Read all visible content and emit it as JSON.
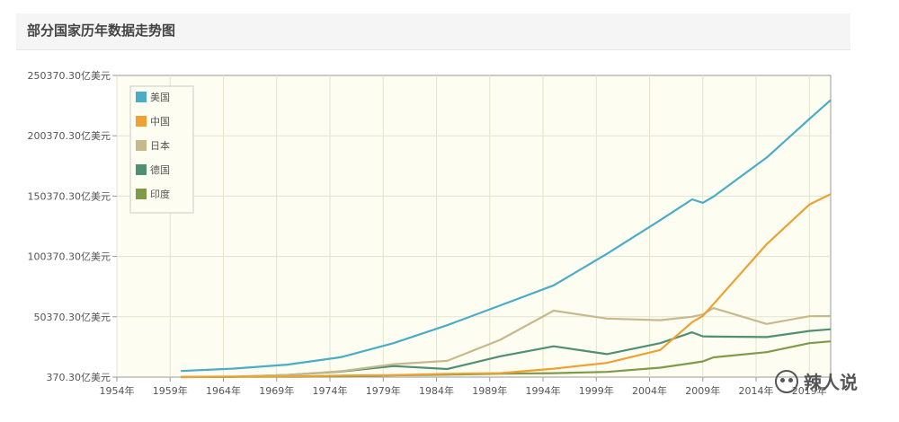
{
  "header": {
    "title": "部分国家历年数据走势图"
  },
  "watermark": {
    "text": "辣人说",
    "icon": "wechat-icon"
  },
  "chart_data": {
    "type": "line",
    "title": "部分国家历年数据走势图",
    "xlabel": "",
    "ylabel": "",
    "x_tick_labels": [
      "1954年",
      "1959年",
      "1964年",
      "1969年",
      "1974年",
      "1979年",
      "1984年",
      "1989年",
      "1994年",
      "1999年",
      "2004年",
      "2009年",
      "2014年",
      "2019年"
    ],
    "y_tick_labels": [
      "370.30亿美元",
      "50370.30亿美元",
      "100370.30亿美元",
      "150370.30亿美元",
      "200370.30亿美元",
      "250370.30亿美元"
    ],
    "xlim": [
      1954,
      2021
    ],
    "ylim": [
      370.3,
      250370.3
    ],
    "grid": true,
    "legend_position": "top-left",
    "x": [
      1960,
      1965,
      1970,
      1975,
      1980,
      1985,
      1990,
      1995,
      2000,
      2005,
      2008,
      2009,
      2010,
      2015,
      2019,
      2021
    ],
    "series": [
      {
        "name": "美国",
        "color": "#4bacc6",
        "values": [
          5433,
          7437,
          10733,
          16848,
          28573,
          43390,
          59800,
          76400,
          102500,
          130400,
          147700,
          144800,
          149900,
          182400,
          214300,
          230000
        ]
      },
      {
        "name": "中国",
        "color": "#f0a030",
        "values": [
          597,
          705,
          926,
          1634,
          1911,
          3094,
          3609,
          7344,
          12110,
          22860,
          45940,
          51020,
          60870,
          110600,
          143400,
          152000
        ]
      },
      {
        "name": "日本",
        "color": "#c6b98b",
        "values": [
          443,
          910,
          2126,
          5211,
          11050,
          13850,
          31330,
          55460,
          48880,
          47550,
          50380,
          52310,
          57590,
          44440,
          50820,
          51000
        ]
      },
      {
        "name": "德国",
        "color": "#4f8f72",
        "values": [
          400,
          600,
          2150,
          4900,
          9500,
          7100,
          17640,
          25910,
          19430,
          28460,
          37520,
          34180,
          33960,
          33570,
          38610,
          40000
        ]
      },
      {
        "name": "印度",
        "color": "#7f9a48",
        "values": [
          370,
          600,
          630,
          990,
          1862,
          2360,
          3207,
          3607,
          4683,
          8204,
          11990,
          13420,
          16760,
          21030,
          28510,
          30000
        ]
      }
    ]
  }
}
